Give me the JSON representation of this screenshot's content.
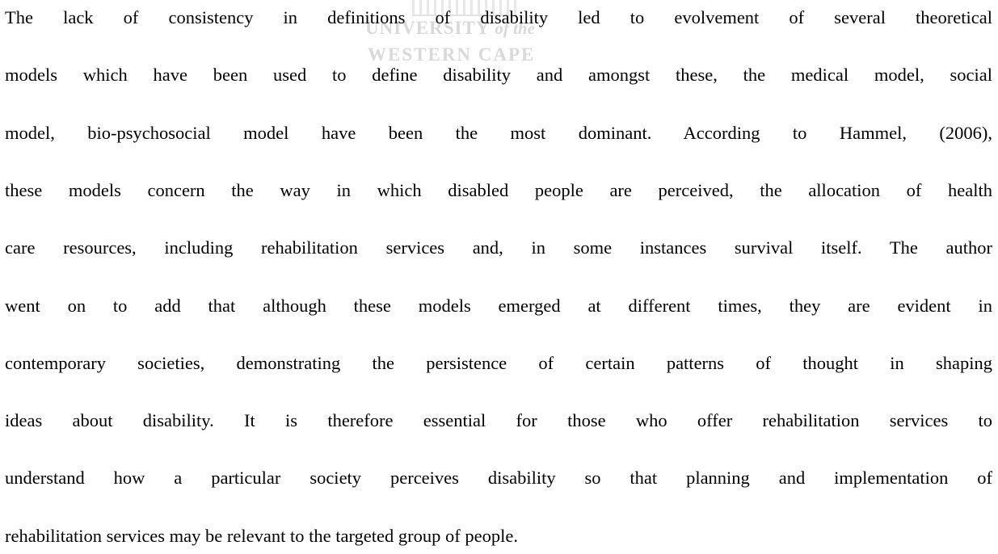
{
  "watermark": {
    "line1": "UNIVERSITY",
    "line1_suffix": "of the",
    "line2": "WESTERN CAPE"
  },
  "paragraph": {
    "lines": [
      "The lack of consistency in definitions of disability led to evolvement of several theoretical",
      "models which have been used to define disability and amongst these, the medical model, social",
      "model, bio-psychosocial model have been the most dominant. According to Hammel, (2006),",
      "these models concern the way in which disabled people are perceived, the allocation of health",
      "care resources, including rehabilitation services and, in some instances survival itself. The author",
      "went on to add that although these models emerged at different times, they are evident in",
      "contemporary societies, demonstrating the persistence of certain patterns of thought in shaping",
      "ideas about disability. It is therefore essential for those who offer rehabilitation services to",
      "understand how a particular society perceives disability so that planning and implementation of",
      "rehabilitation services may be relevant to the targeted group of people."
    ]
  }
}
